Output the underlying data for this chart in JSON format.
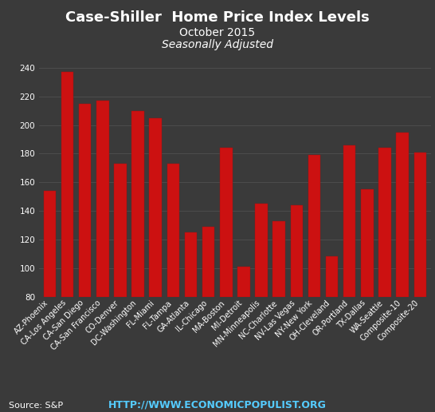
{
  "title_line1": "Case-Shiller  Home Price Index Levels",
  "title_line2": "October 2015",
  "title_line3": "Seasonally Adjusted",
  "categories": [
    "AZ-Phoenix",
    "CA-Los Angeles",
    "CA-San Diego",
    "CA-San Francisco",
    "CO-Denver",
    "DC-Washington",
    "FL-Miami",
    "FL-Tampa",
    "GA-Atlanta",
    "IL-Chicago",
    "MA-Boston",
    "MI-Detroit",
    "MN-Minneapolis",
    "NC-Charlotte",
    "NV-Las Vegas",
    "NY-New York",
    "OH-Cleveland",
    "OR-Portland",
    "TX-Dallas",
    "WA-Seattle",
    "Composite-10",
    "Composite-20"
  ],
  "values": [
    154,
    237,
    215,
    217,
    173,
    210,
    205,
    173,
    125,
    129,
    184,
    101,
    145,
    133,
    144,
    179,
    108,
    186,
    155,
    184,
    195,
    181
  ],
  "bar_color": "#cc1111",
  "bar_edge_color": "#991111",
  "background_color": "#3a3a3a",
  "text_color": "#ffffff",
  "grid_color": "#555555",
  "ylim": [
    80,
    250
  ],
  "yticks": [
    80,
    100,
    120,
    140,
    160,
    180,
    200,
    220,
    240
  ],
  "source_text": "Source: S&P",
  "url_text": "HTTP://WWW.ECONOMICPOPULIST.ORG",
  "title_fontsize": 13,
  "subtitle_fontsize": 10,
  "tick_fontsize": 7.5,
  "xlabel_fontsize": 7,
  "source_fontsize": 8,
  "url_fontsize": 9,
  "url_color": "#55ccff"
}
